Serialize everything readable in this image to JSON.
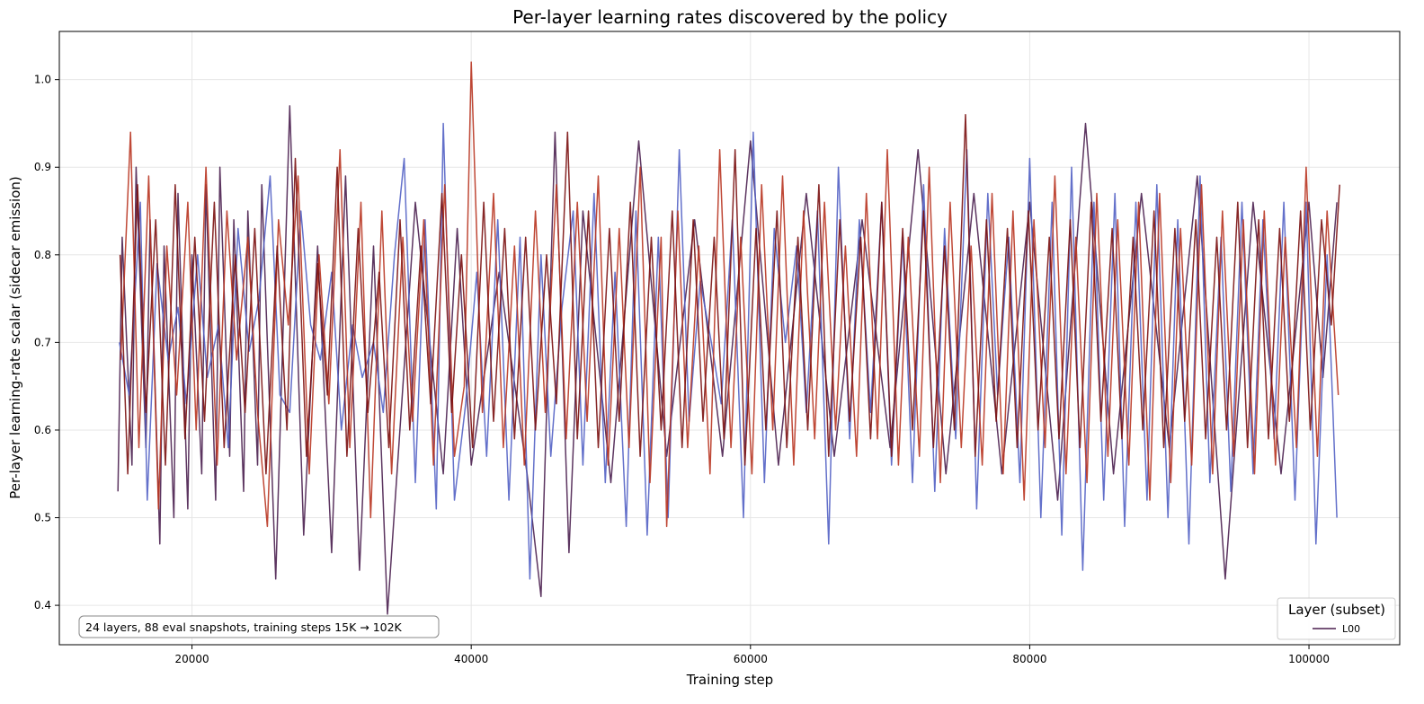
{
  "chart_data": {
    "type": "line",
    "title": "Per-layer learning rates discovered by the policy",
    "xlabel": "Training step",
    "ylabel": "Per-layer learning-rate scalar (sidecar emission)",
    "xlim": [
      10500,
      106500
    ],
    "ylim": [
      0.355,
      1.055
    ],
    "xticks": [
      20000,
      40000,
      60000,
      80000,
      100000
    ],
    "yticks": [
      0.4,
      0.5,
      0.6,
      0.7,
      0.8,
      0.9,
      1.0
    ],
    "grid": true,
    "legend": {
      "title": "Layer (subset)",
      "placement": "bottom-right",
      "entries": [
        {
          "label": "L00",
          "color": "#4a1f4f"
        }
      ]
    },
    "annotation": "24 layers, 88 eval snapshots, training steps 15K → 102K",
    "series": [
      {
        "name": "L00",
        "color": "#4a1f4f",
        "x": [
          14700,
          15000,
          15700,
          16000,
          16700,
          17000,
          17700,
          18000,
          18700,
          19000,
          19700,
          20000,
          20700,
          21000,
          21700,
          22000,
          22700,
          23000,
          23700,
          24000,
          24700,
          25000,
          26000,
          27000,
          28000,
          29000,
          30000,
          31000,
          32000,
          33000,
          34000,
          36000,
          38000,
          39000,
          40000,
          42000,
          44000,
          45000,
          46000,
          47000,
          48000,
          50000,
          52000,
          54000,
          56000,
          58000,
          60000,
          62000,
          64000,
          66000,
          68000,
          70000,
          72000,
          74000,
          76000,
          78000,
          80000,
          82000,
          84000,
          86000,
          88000,
          90000,
          92000,
          94000,
          96000,
          98000,
          100000,
          101000,
          102000
        ],
        "values": [
          0.53,
          0.82,
          0.56,
          0.9,
          0.58,
          0.84,
          0.47,
          0.81,
          0.5,
          0.87,
          0.51,
          0.8,
          0.55,
          0.88,
          0.52,
          0.9,
          0.57,
          0.84,
          0.53,
          0.85,
          0.56,
          0.88,
          0.43,
          0.97,
          0.48,
          0.81,
          0.46,
          0.89,
          0.44,
          0.81,
          0.39,
          0.86,
          0.55,
          0.83,
          0.56,
          0.78,
          0.55,
          0.41,
          0.94,
          0.46,
          0.85,
          0.54,
          0.93,
          0.57,
          0.84,
          0.57,
          0.93,
          0.56,
          0.87,
          0.57,
          0.84,
          0.58,
          0.92,
          0.55,
          0.87,
          0.55,
          0.86,
          0.52,
          0.95,
          0.55,
          0.87,
          0.58,
          0.89,
          0.43,
          0.86,
          0.55,
          0.86,
          0.66,
          0.86
        ]
      },
      {
        "name": "",
        "color": "#5261c4",
        "x": [
          14800,
          15500,
          16300,
          16800,
          17500,
          18300,
          19000,
          19600,
          20400,
          21100,
          21900,
          22600,
          23300,
          24100,
          24800,
          25600,
          26300,
          27000,
          27800,
          28500,
          29200,
          30000,
          30700,
          31500,
          32200,
          33000,
          33700,
          34500,
          35200,
          36000,
          36700,
          37500,
          38000,
          38800,
          39600,
          40400,
          41100,
          41900,
          42700,
          43500,
          44200,
          45000,
          45700,
          46500,
          47300,
          48000,
          48800,
          49600,
          50300,
          51100,
          51800,
          52600,
          53400,
          54100,
          54900,
          55600,
          56400,
          57200,
          57900,
          58700,
          59500,
          60200,
          61000,
          61700,
          62500,
          63300,
          64000,
          64800,
          65600,
          66300,
          67100,
          67800,
          68600,
          69400,
          70100,
          70900,
          71600,
          72400,
          73200,
          73900,
          74700,
          75500,
          76200,
          77000,
          77700,
          78500,
          79300,
          80000,
          80800,
          81600,
          82300,
          83000,
          83800,
          84600,
          85300,
          86100,
          86800,
          87600,
          88400,
          89100,
          89900,
          90600,
          91400,
          92200,
          92900,
          93700,
          94400,
          95200,
          96000,
          96700,
          97500,
          98200,
          99000,
          99800,
          100500,
          101300,
          102000
        ],
        "values": [
          0.7,
          0.64,
          0.86,
          0.52,
          0.79,
          0.68,
          0.74,
          0.63,
          0.8,
          0.66,
          0.72,
          0.58,
          0.83,
          0.69,
          0.75,
          0.89,
          0.64,
          0.62,
          0.85,
          0.72,
          0.68,
          0.78,
          0.6,
          0.72,
          0.66,
          0.7,
          0.62,
          0.8,
          0.91,
          0.54,
          0.84,
          0.51,
          0.95,
          0.52,
          0.63,
          0.78,
          0.57,
          0.84,
          0.52,
          0.82,
          0.43,
          0.8,
          0.57,
          0.74,
          0.85,
          0.56,
          0.87,
          0.54,
          0.78,
          0.49,
          0.85,
          0.48,
          0.82,
          0.5,
          0.92,
          0.61,
          0.77,
          0.7,
          0.63,
          0.84,
          0.5,
          0.94,
          0.54,
          0.83,
          0.7,
          0.81,
          0.62,
          0.85,
          0.47,
          0.9,
          0.59,
          0.84,
          0.62,
          0.86,
          0.56,
          0.82,
          0.54,
          0.88,
          0.53,
          0.83,
          0.59,
          0.92,
          0.51,
          0.87,
          0.64,
          0.82,
          0.54,
          0.91,
          0.5,
          0.86,
          0.48,
          0.9,
          0.44,
          0.86,
          0.52,
          0.87,
          0.49,
          0.86,
          0.52,
          0.88,
          0.5,
          0.84,
          0.47,
          0.89,
          0.54,
          0.82,
          0.53,
          0.86,
          0.55,
          0.84,
          0.59,
          0.86,
          0.52,
          0.86,
          0.47,
          0.8,
          0.5
        ]
      },
      {
        "name": "",
        "color": "#b83420",
        "x": [
          14900,
          15600,
          16200,
          16900,
          17600,
          18200,
          18900,
          19700,
          20300,
          21000,
          21800,
          22500,
          23200,
          24000,
          24700,
          25400,
          26200,
          26900,
          27600,
          28400,
          29100,
          29800,
          30600,
          31300,
          32100,
          32800,
          33600,
          34300,
          35100,
          35800,
          36600,
          37300,
          38100,
          38800,
          39500,
          40000,
          40800,
          41600,
          42300,
          43100,
          43800,
          44600,
          45300,
          46100,
          46800,
          47600,
          48300,
          49100,
          49800,
          50600,
          51300,
          52100,
          52800,
          53600,
          54000,
          54800,
          55500,
          56300,
          57100,
          57800,
          58600,
          59300,
          60100,
          60800,
          61600,
          62300,
          63100,
          63800,
          64600,
          65300,
          66100,
          66800,
          67600,
          68300,
          69100,
          69800,
          70600,
          71300,
          72100,
          72800,
          73600,
          74300,
          75100,
          75800,
          76600,
          77300,
          78100,
          78800,
          79600,
          80300,
          81100,
          81800,
          82600,
          83300,
          84100,
          84800,
          85600,
          86300,
          87100,
          87800,
          88600,
          89300,
          90100,
          90800,
          91600,
          92300,
          93100,
          93800,
          94600,
          95300,
          96100,
          96800,
          97600,
          98300,
          99100,
          99800,
          100600,
          101300,
          102100
        ],
        "values": [
          0.68,
          0.94,
          0.58,
          0.89,
          0.51,
          0.81,
          0.64,
          0.86,
          0.6,
          0.9,
          0.56,
          0.85,
          0.68,
          0.82,
          0.62,
          0.49,
          0.84,
          0.72,
          0.89,
          0.55,
          0.8,
          0.63,
          0.92,
          0.58,
          0.86,
          0.5,
          0.85,
          0.55,
          0.82,
          0.61,
          0.84,
          0.56,
          0.88,
          0.57,
          0.65,
          1.02,
          0.62,
          0.87,
          0.58,
          0.81,
          0.56,
          0.85,
          0.62,
          0.88,
          0.59,
          0.86,
          0.61,
          0.89,
          0.56,
          0.83,
          0.58,
          0.9,
          0.54,
          0.82,
          0.49,
          0.85,
          0.58,
          0.81,
          0.55,
          0.92,
          0.58,
          0.82,
          0.55,
          0.88,
          0.6,
          0.89,
          0.56,
          0.85,
          0.59,
          0.86,
          0.6,
          0.81,
          0.57,
          0.87,
          0.59,
          0.92,
          0.56,
          0.82,
          0.57,
          0.9,
          0.54,
          0.86,
          0.58,
          0.81,
          0.56,
          0.87,
          0.55,
          0.85,
          0.52,
          0.84,
          0.58,
          0.89,
          0.55,
          0.82,
          0.54,
          0.87,
          0.57,
          0.84,
          0.56,
          0.86,
          0.52,
          0.87,
          0.54,
          0.83,
          0.56,
          0.88,
          0.55,
          0.85,
          0.57,
          0.84,
          0.55,
          0.85,
          0.56,
          0.82,
          0.58,
          0.9,
          0.57,
          0.85,
          0.64
        ]
      },
      {
        "name": "",
        "color": "#7a1010",
        "x": [
          14850,
          15400,
          16100,
          16700,
          17400,
          18100,
          18800,
          19500,
          20200,
          20900,
          21600,
          22300,
          23100,
          23800,
          24500,
          25300,
          26100,
          26800,
          27400,
          28200,
          29000,
          29700,
          30400,
          31100,
          31900,
          32600,
          33400,
          34100,
          34900,
          35600,
          36400,
          37100,
          37900,
          38600,
          39300,
          40100,
          40900,
          41600,
          42400,
          43100,
          43900,
          44600,
          45400,
          46100,
          46900,
          47600,
          48400,
          49100,
          49900,
          50600,
          51400,
          52100,
          52900,
          53600,
          54400,
          55100,
          55900,
          56600,
          57400,
          58100,
          58900,
          59600,
          60400,
          61100,
          61900,
          62600,
          63400,
          64100,
          64900,
          65600,
          66400,
          67100,
          67900,
          68600,
          69400,
          70100,
          70900,
          71600,
          72400,
          73100,
          73900,
          74600,
          75400,
          76100,
          76900,
          77600,
          78400,
          79100,
          79900,
          80600,
          81400,
          82100,
          82900,
          83600,
          84400,
          85100,
          85900,
          86600,
          87400,
          88100,
          88900,
          89600,
          90400,
          91100,
          91900,
          92600,
          93400,
          94100,
          94900,
          95600,
          96400,
          97100,
          97900,
          98600,
          99400,
          100100,
          100900,
          101600,
          102200
        ],
        "values": [
          0.8,
          0.55,
          0.88,
          0.62,
          0.84,
          0.56,
          0.88,
          0.59,
          0.82,
          0.61,
          0.86,
          0.58,
          0.8,
          0.62,
          0.83,
          0.55,
          0.81,
          0.6,
          0.91,
          0.57,
          0.79,
          0.64,
          0.9,
          0.57,
          0.83,
          0.62,
          0.78,
          0.58,
          0.84,
          0.6,
          0.81,
          0.63,
          0.87,
          0.62,
          0.8,
          0.58,
          0.86,
          0.61,
          0.83,
          0.59,
          0.82,
          0.6,
          0.8,
          0.63,
          0.94,
          0.59,
          0.85,
          0.58,
          0.83,
          0.61,
          0.86,
          0.57,
          0.82,
          0.6,
          0.85,
          0.58,
          0.84,
          0.61,
          0.82,
          0.59,
          0.92,
          0.56,
          0.83,
          0.6,
          0.85,
          0.58,
          0.82,
          0.6,
          0.88,
          0.57,
          0.84,
          0.61,
          0.82,
          0.59,
          0.86,
          0.57,
          0.83,
          0.6,
          0.85,
          0.58,
          0.81,
          0.6,
          0.96,
          0.57,
          0.84,
          0.61,
          0.83,
          0.58,
          0.85,
          0.6,
          0.82,
          0.59,
          0.84,
          0.58,
          0.86,
          0.61,
          0.83,
          0.59,
          0.82,
          0.6,
          0.85,
          0.58,
          0.83,
          0.61,
          0.84,
          0.59,
          0.82,
          0.6,
          0.86,
          0.58,
          0.84,
          0.59,
          0.83,
          0.61,
          0.85,
          0.6,
          0.84,
          0.72,
          0.88
        ]
      }
    ]
  }
}
